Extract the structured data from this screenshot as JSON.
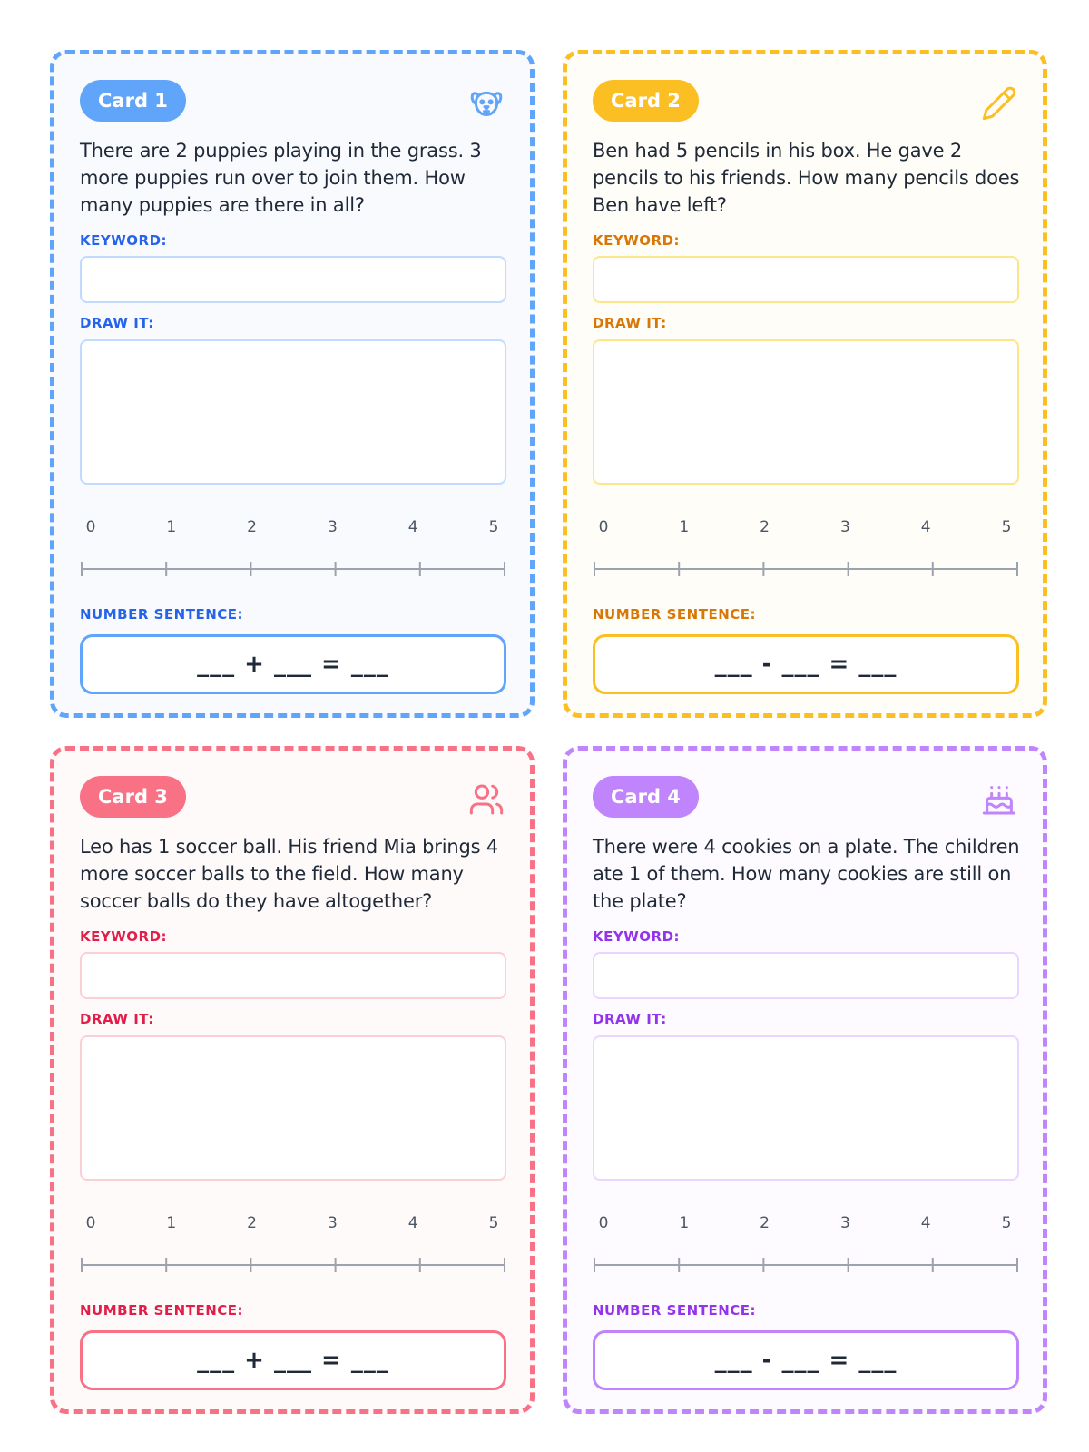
{
  "labels": {
    "keyword": "KEYWORD:",
    "draw": "DRAW IT:",
    "sentence": "NUMBER SENTENCE:"
  },
  "number_line": {
    "ticks": [
      "0",
      "1",
      "2",
      "3",
      "4",
      "5"
    ]
  },
  "cards": [
    {
      "badge": "Card 1",
      "icon": "dog-icon",
      "problem": "There are 2 puppies playing in the grass. 3 more puppies run over to join them. How many puppies are there in all?",
      "sentence": "___ + ___ = ___",
      "colors": {
        "main": "#60a5fa",
        "dark": "#2563eb",
        "light": "#bfdbfe",
        "bg": "#f8fafd"
      }
    },
    {
      "badge": "Card 2",
      "icon": "pencil-icon",
      "problem": "Ben had 5 pencils in his box. He gave 2 pencils to his friends. How many pencils does Ben have left?",
      "sentence": "___ - ___ = ___",
      "colors": {
        "main": "#fbbf24",
        "dark": "#d97706",
        "light": "#fde68a",
        "bg": "#fffdf8"
      }
    },
    {
      "badge": "Card 3",
      "icon": "users-icon",
      "problem": "Leo has 1 soccer ball. His friend Mia brings 4 more soccer balls to the field. How many soccer balls do they have altogether?",
      "sentence": "___ + ___ = ___",
      "colors": {
        "main": "#f87185",
        "dark": "#e11d48",
        "light": "#fbcfd6",
        "bg": "#fffafa"
      }
    },
    {
      "badge": "Card 4",
      "icon": "cake-icon",
      "problem": "There were 4 cookies on a plate. The children ate 1 of them. How many cookies are still on the plate?",
      "sentence": "___ - ___ = ___",
      "colors": {
        "main": "#c084fc",
        "dark": "#9333ea",
        "light": "#e9d5ff",
        "bg": "#fdfbff"
      }
    }
  ]
}
